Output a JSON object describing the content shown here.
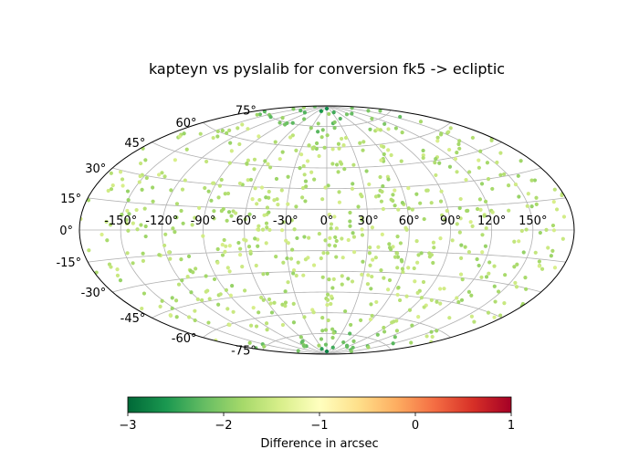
{
  "chart_data": {
    "type": "scatter",
    "projection": "aitoff",
    "title": "kapteyn vs pyslalib for conversion fk5 -> ecliptic",
    "longitude_ticks": [
      "-150°",
      "-120°",
      "-90°",
      "-60°",
      "-30°",
      "0°",
      "30°",
      "60°",
      "90°",
      "120°",
      "150°"
    ],
    "latitude_ticks": [
      "-75°",
      "-60°",
      "-45°",
      "-30°",
      "-15°",
      "0°",
      "15°",
      "30°",
      "45°",
      "60°",
      "75°"
    ],
    "grid": true,
    "colorbar": {
      "label": "Difference in arcsec",
      "colormap": "RdYlGn_r",
      "range": [
        -3,
        1
      ],
      "ticks": [
        "−3",
        "−2",
        "−1",
        "0",
        "1"
      ],
      "colors": [
        "#006837",
        "#1a9850",
        "#66bd63",
        "#a6d96a",
        "#d9ef8b",
        "#ffffbf",
        "#fee08b",
        "#fdae61",
        "#f46d43",
        "#d73027",
        "#a50026"
      ]
    },
    "points": [
      {
        "lon": 0,
        "lat": 88,
        "value": -2.7
      },
      {
        "lon": 40,
        "lat": 85,
        "value": -2.4
      },
      {
        "lon": -40,
        "lat": 86,
        "value": -2.6
      },
      {
        "lon": 100,
        "lat": 82,
        "value": -2.2
      },
      {
        "lon": -100,
        "lat": 83,
        "value": -2.3
      },
      {
        "lon": 160,
        "lat": 84,
        "value": -2.1
      },
      {
        "lon": -160,
        "lat": 82,
        "value": -2.0
      },
      {
        "lon": 20,
        "lat": 78,
        "value": -2.0
      },
      {
        "lon": -20,
        "lat": 77,
        "value": -1.9
      },
      {
        "lon": 0,
        "lat": -88,
        "value": -2.8
      },
      {
        "lon": 35,
        "lat": -85,
        "value": -2.4
      },
      {
        "lon": -35,
        "lat": -86,
        "value": -2.5
      },
      {
        "lon": 90,
        "lat": -83,
        "value": -2.2
      },
      {
        "lon": -90,
        "lat": -82,
        "value": -2.1
      },
      {
        "lon": 150,
        "lat": -84,
        "value": -2.0
      },
      {
        "lon": -150,
        "lat": -83,
        "value": -2.1
      },
      {
        "lon": 15,
        "lat": -78,
        "value": -1.9
      },
      {
        "lon": -15,
        "lat": -79,
        "value": -2.0
      }
    ],
    "background_sample": {
      "count": 700,
      "value_range": [
        -1.9,
        -1.4
      ]
    }
  }
}
